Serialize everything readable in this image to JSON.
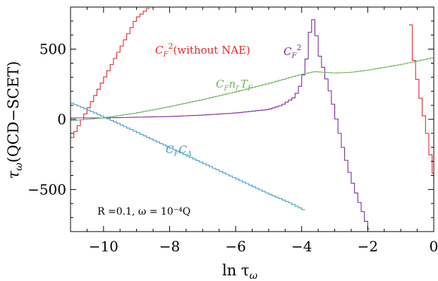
{
  "chart_data": {
    "type": "line",
    "style": "step",
    "xlabel_main": "ln τ",
    "xlabel_sub": "ω",
    "ylabel_main": "τ",
    "ylabel_sub": "ω",
    "ylabel_rest": "(QCD−SCET)",
    "xlim": [
      -11,
      0
    ],
    "ylim": [
      -800,
      800
    ],
    "x_ticks": [
      -10,
      -8,
      -6,
      -4,
      -2,
      0
    ],
    "x_tick_labels": [
      "−10",
      "−8",
      "−6",
      "−4",
      "−2",
      "0"
    ],
    "y_ticks": [
      -500,
      0,
      500
    ],
    "y_tick_labels": [
      "−500",
      "0",
      "500"
    ],
    "grid": false,
    "note": "R =0.1, ω = 10⁻⁴Q",
    "series": [
      {
        "id": "cf2-without-nae",
        "label_main": "C",
        "label_sub": "F",
        "label_sup": "2",
        "label_rest": "(without NAE)",
        "color": "#e8262b",
        "points": [
          [
            -11,
            -150
          ],
          [
            -10.5,
            60
          ],
          [
            -10,
            280
          ],
          [
            -9.5,
            500
          ],
          [
            -9,
            720
          ],
          [
            -8.6,
            800
          ]
        ],
        "points_right": [
          [
            -0.75,
            800
          ],
          [
            -0.6,
            420
          ],
          [
            -0.4,
            150
          ],
          [
            -0.2,
            -100
          ],
          [
            -0.05,
            -330
          ],
          [
            0,
            -440
          ]
        ]
      },
      {
        "id": "cf2",
        "label_main": "C",
        "label_sub": "F",
        "label_sup": "2",
        "color": "#7e2aa0",
        "points": [
          [
            -11,
            10
          ],
          [
            -10,
            10
          ],
          [
            -9,
            15
          ],
          [
            -8,
            20
          ],
          [
            -7,
            30
          ],
          [
            -6,
            45
          ],
          [
            -5,
            70
          ],
          [
            -4.6,
            100
          ],
          [
            -4.2,
            160
          ],
          [
            -4,
            260
          ],
          [
            -3.85,
            430
          ],
          [
            -3.75,
            620
          ],
          [
            -3.7,
            720
          ],
          [
            -3.6,
            700
          ],
          [
            -3.5,
            490
          ],
          [
            -3.3,
            330
          ],
          [
            -3.1,
            160
          ],
          [
            -2.9,
            -50
          ],
          [
            -2.7,
            -250
          ],
          [
            -2.5,
            -420
          ],
          [
            -2.3,
            -560
          ],
          [
            -2.1,
            -690
          ],
          [
            -1.95,
            -800
          ]
        ]
      },
      {
        "id": "cfnftf",
        "label_main": "C",
        "label_sub": "F",
        "label_mid": "n",
        "label_sub2": "f",
        "label_tail": "T",
        "label_sub3": "F",
        "color": "#6db35a",
        "points": [
          [
            -11,
            -10
          ],
          [
            -10,
            10
          ],
          [
            -9,
            45
          ],
          [
            -8,
            90
          ],
          [
            -7,
            140
          ],
          [
            -6,
            195
          ],
          [
            -5,
            255
          ],
          [
            -4,
            320
          ],
          [
            -3.6,
            340
          ],
          [
            -3,
            330
          ],
          [
            -2.5,
            335
          ],
          [
            -2,
            350
          ],
          [
            -1,
            390
          ],
          [
            0,
            440
          ]
        ]
      },
      {
        "id": "cfca",
        "label_main": "C",
        "label_sub": "F",
        "label_tail": "C",
        "label_sub3": "A",
        "color": "#3a9fbf",
        "points": [
          [
            -11,
            120
          ],
          [
            -10,
            20
          ],
          [
            -9,
            -90
          ],
          [
            -8,
            -200
          ],
          [
            -7,
            -310
          ],
          [
            -6,
            -420
          ],
          [
            -5,
            -530
          ],
          [
            -4.3,
            -600
          ],
          [
            -3.9,
            -650
          ]
        ]
      }
    ]
  }
}
